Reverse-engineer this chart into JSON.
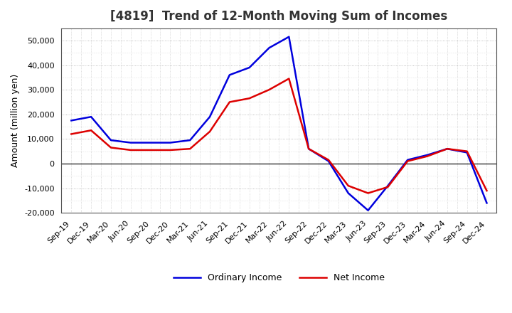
{
  "title": "[4819]  Trend of 12-Month Moving Sum of Incomes",
  "ylabel": "Amount (million yen)",
  "background_color": "#ffffff",
  "plot_bg_color": "#ffffff",
  "grid_color": "#999999",
  "ylim": [
    -20000,
    55000
  ],
  "yticks": [
    -20000,
    -10000,
    0,
    10000,
    20000,
    30000,
    40000,
    50000
  ],
  "labels": [
    "Sep-19",
    "Dec-19",
    "Mar-20",
    "Jun-20",
    "Sep-20",
    "Dec-20",
    "Mar-21",
    "Jun-21",
    "Sep-21",
    "Dec-21",
    "Mar-22",
    "Jun-22",
    "Sep-22",
    "Dec-22",
    "Mar-23",
    "Jun-23",
    "Sep-23",
    "Dec-23",
    "Mar-24",
    "Jun-24",
    "Sep-24",
    "Dec-24"
  ],
  "ordinary_income": [
    17500,
    19000,
    9500,
    8500,
    8500,
    8500,
    9500,
    19000,
    36000,
    39000,
    47000,
    51500,
    6000,
    1000,
    -12000,
    -19000,
    -9000,
    1500,
    3500,
    6000,
    4500,
    -16000
  ],
  "net_income": [
    12000,
    13500,
    6500,
    5500,
    5500,
    5500,
    6000,
    13000,
    25000,
    26500,
    30000,
    34500,
    6000,
    1500,
    -9000,
    -12000,
    -9500,
    1000,
    3000,
    6000,
    5000,
    -11000
  ],
  "ordinary_color": "#0000dd",
  "net_color": "#dd0000",
  "line_width": 1.8,
  "title_fontsize": 12,
  "label_fontsize": 9,
  "tick_fontsize": 8,
  "legend_fontsize": 9
}
